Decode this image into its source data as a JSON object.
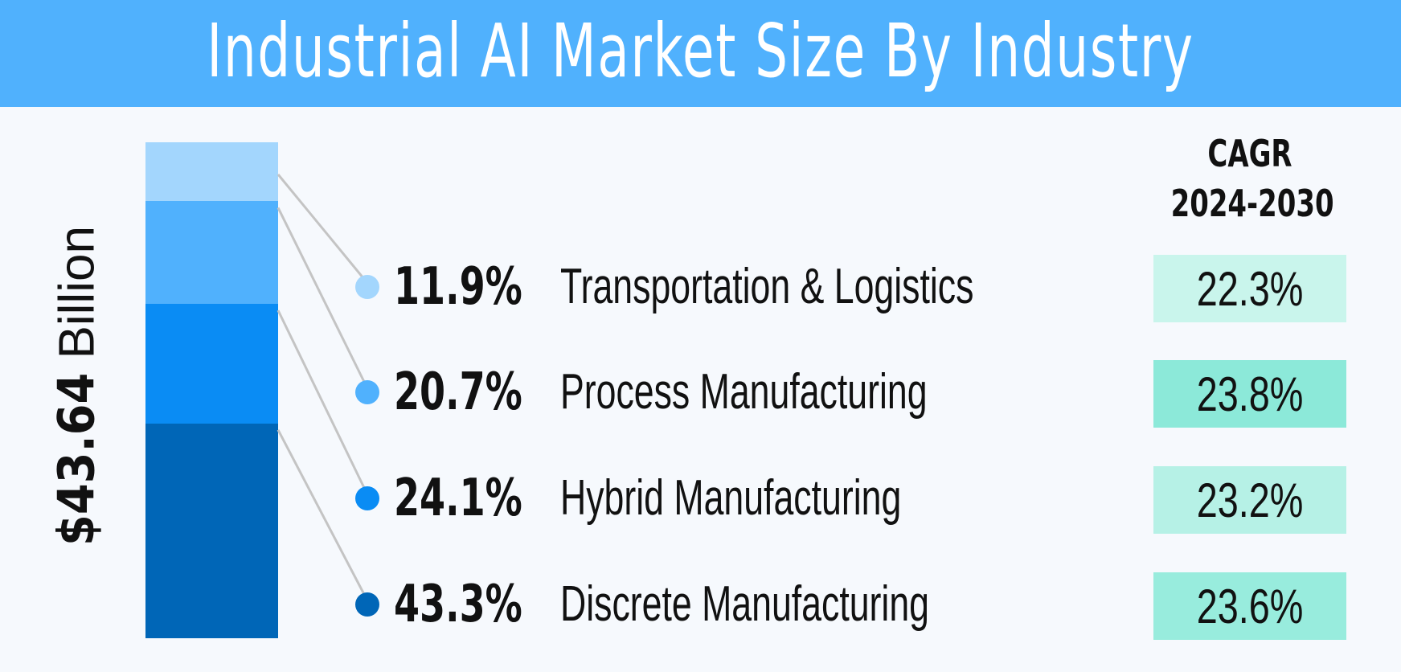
{
  "chart_data": {
    "type": "bar",
    "title": "Industrial AI Market Size By Industry",
    "total": {
      "amount": "$43.64",
      "unit": "Billion"
    },
    "cagr_header": [
      "CAGR",
      "2024-2030"
    ],
    "categories": [
      "Transportation & Logistics",
      "Process Manufacturing",
      "Hybrid Manufacturing",
      "Discrete Manufacturing"
    ],
    "values": [
      11.9,
      20.7,
      24.1,
      43.3
    ],
    "share_labels": [
      "11.9%",
      "20.7%",
      "24.1%",
      "43.3%"
    ],
    "cagr_values": [
      22.3,
      23.8,
      23.2,
      23.6
    ],
    "cagr_labels": [
      "22.3%",
      "23.8%",
      "23.2%",
      "23.6%"
    ],
    "colors": [
      "#a3d6fd",
      "#50b1fd",
      "#0a8cf4",
      "#0066b7"
    ],
    "cagr_box_colors": [
      "#c9f5ec",
      "#8ce9d9",
      "#b6f1e6",
      "#98ecdd"
    ],
    "orientation": "stacked-vertical"
  }
}
